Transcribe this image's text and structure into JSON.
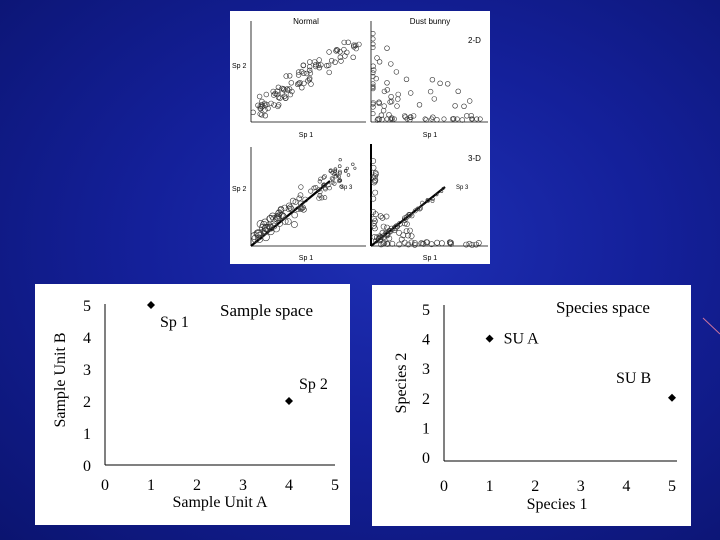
{
  "colors": {
    "background": "#1624a0",
    "panel": "#ffffff",
    "ink": "#000000"
  },
  "top_figure": {
    "panels": [
      {
        "title": "Normal",
        "tag": "",
        "ylabel": "Sp 2",
        "xlabel": "Sp 1",
        "axis3": ""
      },
      {
        "title": "Dust bunny",
        "tag": "2-D",
        "ylabel": "",
        "xlabel": "Sp 1",
        "axis3": ""
      },
      {
        "title": "",
        "tag": "",
        "ylabel": "Sp 2",
        "xlabel": "Sp 1",
        "axis3": "Sp 3"
      },
      {
        "title": "",
        "tag": "3-D",
        "ylabel": "",
        "xlabel": "Sp 1",
        "axis3": "Sp 3"
      }
    ]
  },
  "chart_data": [
    {
      "type": "scatter",
      "title": "Sample space",
      "xlabel": "Sample Unit A",
      "ylabel": "Sample Unit B",
      "xlim": [
        0,
        5
      ],
      "ylim": [
        0,
        5
      ],
      "xticks": [
        "0",
        "1",
        "2",
        "3",
        "4",
        "5"
      ],
      "yticks": [
        "0",
        "1",
        "2",
        "3",
        "4",
        "5"
      ],
      "points": [
        {
          "label": "Sp 1",
          "x": 1,
          "y": 5
        },
        {
          "label": "Sp 2",
          "x": 4,
          "y": 2
        }
      ]
    },
    {
      "type": "scatter",
      "title": "Species space",
      "xlabel": "Species 1",
      "ylabel": "Species 2",
      "xlim": [
        0,
        5
      ],
      "ylim": [
        0,
        5
      ],
      "xticks": [
        "0",
        "1",
        "2",
        "3",
        "4",
        "5"
      ],
      "yticks": [
        "0",
        "1",
        "2",
        "3",
        "4",
        "5"
      ],
      "points": [
        {
          "label": "SU A",
          "x": 1,
          "y": 4
        },
        {
          "label": "SU B",
          "x": 5,
          "y": 2
        }
      ]
    }
  ]
}
